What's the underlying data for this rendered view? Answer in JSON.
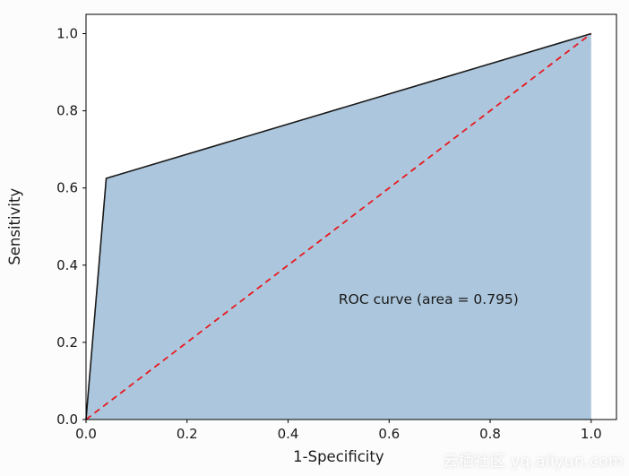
{
  "chart_data": {
    "type": "line",
    "title": "",
    "xlabel": "1-Specificity",
    "ylabel": "Sensitivity",
    "xlim": [
      0,
      1.05
    ],
    "ylim": [
      0,
      1.05
    ],
    "xticks": [
      0.0,
      0.2,
      0.4,
      0.6,
      0.8,
      1.0
    ],
    "yticks": [
      0.0,
      0.2,
      0.4,
      0.6,
      0.8,
      1.0
    ],
    "grid": false,
    "legend": "none",
    "auc": 0.795,
    "series": [
      {
        "name": "ROC curve",
        "x": [
          0.0,
          0.04,
          1.0
        ],
        "y": [
          0.0,
          0.625,
          1.0
        ],
        "color": "#1a1a1a",
        "style": "solid",
        "fill": true,
        "fill_color": "rgba(70,130,180,0.45)"
      },
      {
        "name": "chance-diagonal",
        "x": [
          0.0,
          1.0
        ],
        "y": [
          0.0,
          1.0
        ],
        "color": "#e8191f",
        "style": "dashed"
      }
    ],
    "annotation": {
      "text": "ROC curve (area = 0.795)",
      "x": 0.5,
      "y": 0.3
    },
    "colors": {
      "axis": "#000000",
      "text": "#1a1a1a",
      "plot_background": "#ffffff",
      "figure_background": "#fcfcfc"
    }
  },
  "watermark": {
    "text": "云栖社区 yq.aliyun.com"
  }
}
